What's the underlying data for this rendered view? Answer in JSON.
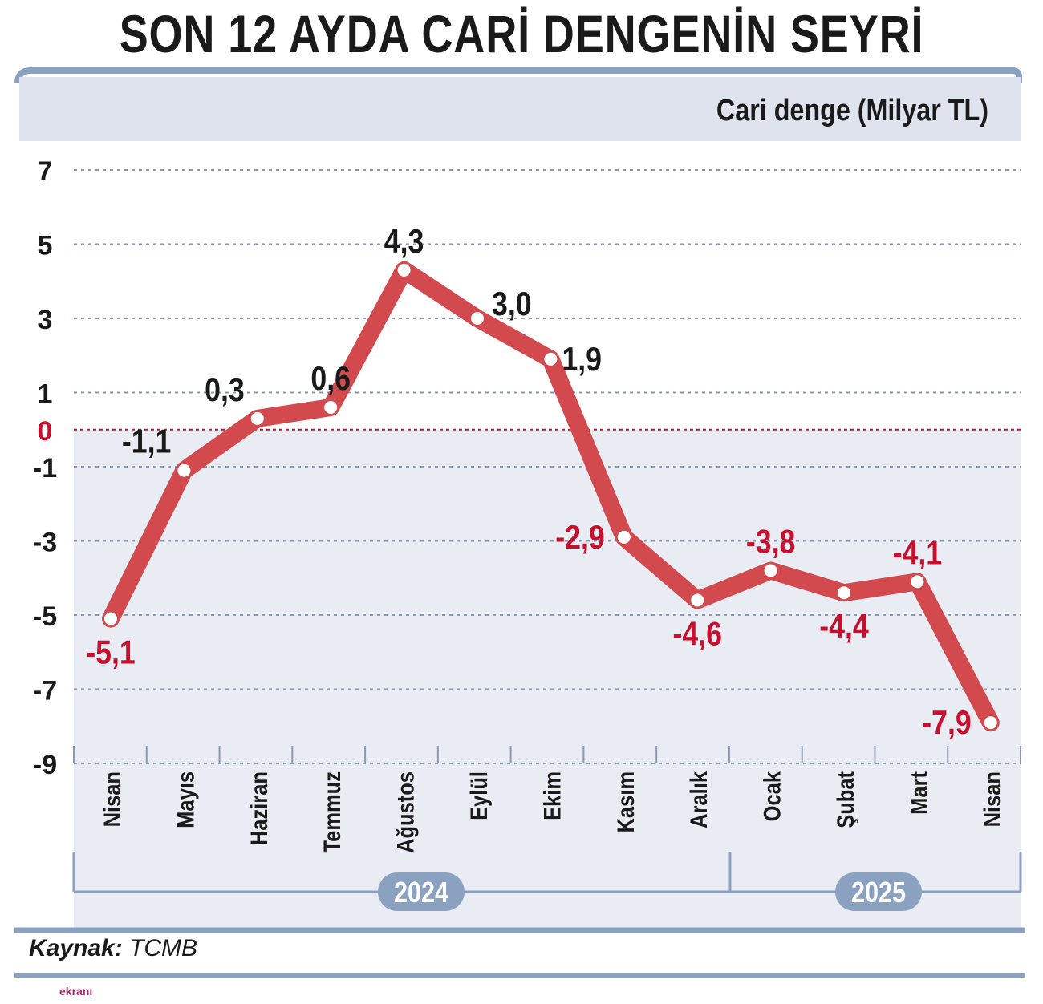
{
  "header": {
    "title": "SON 12 AYDA CARİ DENGENİN SEYRİ",
    "subtitle": "Cari denge (Milyar TL)"
  },
  "footer": {
    "source_label": "Kaynak:",
    "source_value": "TCMB",
    "logo_text": "ekranı"
  },
  "colors": {
    "line": "#d24a4e",
    "negative_label": "#c8102e",
    "positive_label": "#1a1a1a",
    "grid": "#8a98b8",
    "zero_line": "#c8102e",
    "year_badge": "#8aa2c0",
    "panel_top": "#dfe3ee",
    "panel_bottom": "#e9ecf3"
  },
  "chart_data": {
    "type": "line",
    "title": "SON 12 AYDA CARİ DENGENİN SEYRİ",
    "ylabel": "Cari denge (Milyar TL)",
    "categories": [
      "Nisan",
      "Mayıs",
      "Haziran",
      "Temmuz",
      "Ağustos",
      "Eylül",
      "Ekim",
      "Kasım",
      "Aralık",
      "Ocak",
      "Şubat",
      "Mart",
      "Nisan"
    ],
    "values": [
      -5.1,
      -1.1,
      0.3,
      0.6,
      4.3,
      3.0,
      1.9,
      -2.9,
      -4.6,
      -3.8,
      -4.4,
      -4.1,
      -7.9
    ],
    "value_labels": [
      "-5,1",
      "-1,1",
      "0,3",
      "0,6",
      "4,3",
      "3,0",
      "1,9",
      "-2,9",
      "-4,6",
      "-3,8",
      "-4,4",
      "-4,1",
      "-7,9"
    ],
    "label_positions": [
      "below",
      "above-left",
      "above-left",
      "above",
      "above",
      "above-right",
      "right",
      "left",
      "below",
      "above",
      "below",
      "above",
      "left"
    ],
    "yticks": [
      7,
      5,
      3,
      1,
      0,
      -1,
      -3,
      -5,
      -7,
      -9
    ],
    "ylim": [
      -9,
      7
    ],
    "years": [
      {
        "label": "2024",
        "from": 0,
        "to": 8
      },
      {
        "label": "2025",
        "from": 9,
        "to": 12
      }
    ],
    "grid": true,
    "zero_line": true
  }
}
